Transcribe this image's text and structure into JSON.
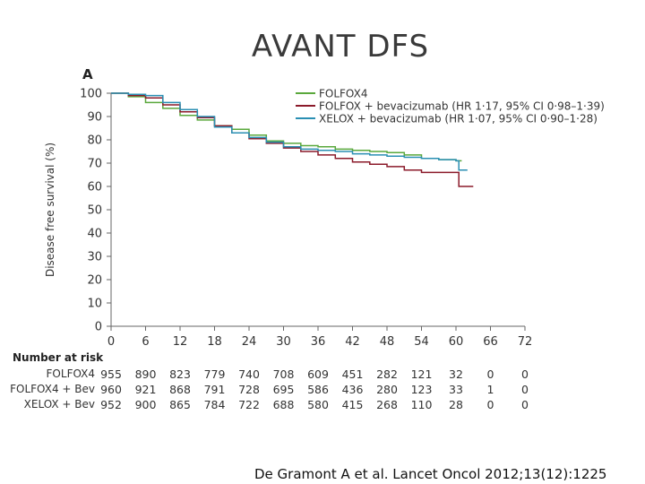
{
  "slide_title": "AVANT  DFS",
  "panel_letter": "A",
  "citation": "De Gramont A et al. Lancet Oncol 2012;13(12):1225",
  "chart_data": {
    "type": "line",
    "title": "",
    "xlabel": "",
    "ylabel": "Disease free survival (%)",
    "xlim": [
      0,
      72
    ],
    "ylim": [
      0,
      100
    ],
    "xticks": [
      0,
      6,
      12,
      18,
      24,
      30,
      36,
      42,
      48,
      54,
      60,
      66,
      72
    ],
    "yticks": [
      0,
      10,
      20,
      30,
      40,
      50,
      60,
      70,
      80,
      90,
      100
    ],
    "grid": false,
    "legend_position": "top-right",
    "series": [
      {
        "name": "FOLFOX4",
        "color": "#5aa83c",
        "x": [
          0,
          3,
          6,
          9,
          12,
          15,
          18,
          21,
          24,
          27,
          30,
          33,
          36,
          39,
          42,
          45,
          48,
          51,
          54,
          57,
          60,
          61
        ],
        "y": [
          100,
          98.5,
          96,
          93.5,
          90.5,
          88.5,
          86,
          84.5,
          82,
          79.5,
          78.5,
          77.5,
          77,
          76,
          75.5,
          75,
          74.5,
          73.5,
          72,
          71.5,
          71,
          71
        ]
      },
      {
        "name": "FOLFOX + bevacizumab (HR 1·17, 95% CI 0·98–1·39)",
        "color": "#8b1a2a",
        "x": [
          0,
          3,
          6,
          9,
          12,
          15,
          18,
          21,
          24,
          27,
          30,
          33,
          36,
          39,
          42,
          45,
          48,
          51,
          54,
          57,
          60,
          60.5,
          63
        ],
        "y": [
          100,
          99,
          98,
          95,
          92,
          89.5,
          86,
          83,
          80.5,
          78.5,
          76.5,
          75,
          73.5,
          72,
          70.5,
          69.5,
          68.5,
          67,
          66,
          66,
          66,
          60,
          60
        ]
      },
      {
        "name": "XELOX + bevacizumab (HR 1·07, 95% CI 0·90–1·28)",
        "color": "#2a8fb3",
        "x": [
          0,
          3,
          6,
          9,
          12,
          15,
          18,
          21,
          24,
          27,
          30,
          33,
          36,
          39,
          42,
          45,
          48,
          51,
          54,
          57,
          60,
          60.5,
          62
        ],
        "y": [
          100,
          99.5,
          99,
          96,
          93,
          90,
          85.5,
          83,
          81,
          79,
          77,
          76,
          75.5,
          75,
          74,
          73.5,
          73,
          72.5,
          72,
          71.5,
          71,
          67,
          67
        ]
      }
    ],
    "risk_table": {
      "title": "Number at risk",
      "times": [
        0,
        6,
        12,
        18,
        24,
        30,
        36,
        42,
        48,
        54,
        60,
        66,
        72
      ],
      "rows": [
        {
          "label": "FOLFOX4",
          "values": [
            "955",
            "890",
            "823",
            "779",
            "740",
            "708",
            "609",
            "451",
            "282",
            "121",
            "32",
            "0",
            "0"
          ]
        },
        {
          "label": "FOLFOX4 + Bev",
          "values": [
            "960",
            "921",
            "868",
            "791",
            "728",
            "695",
            "586",
            "436",
            "280",
            "123",
            "33",
            "1",
            "0"
          ]
        },
        {
          "label": "XELOX + Bev",
          "values": [
            "952",
            "900",
            "865",
            "784",
            "722",
            "688",
            "580",
            "415",
            "268",
            "110",
            "28",
            "0",
            "0"
          ]
        }
      ]
    }
  }
}
